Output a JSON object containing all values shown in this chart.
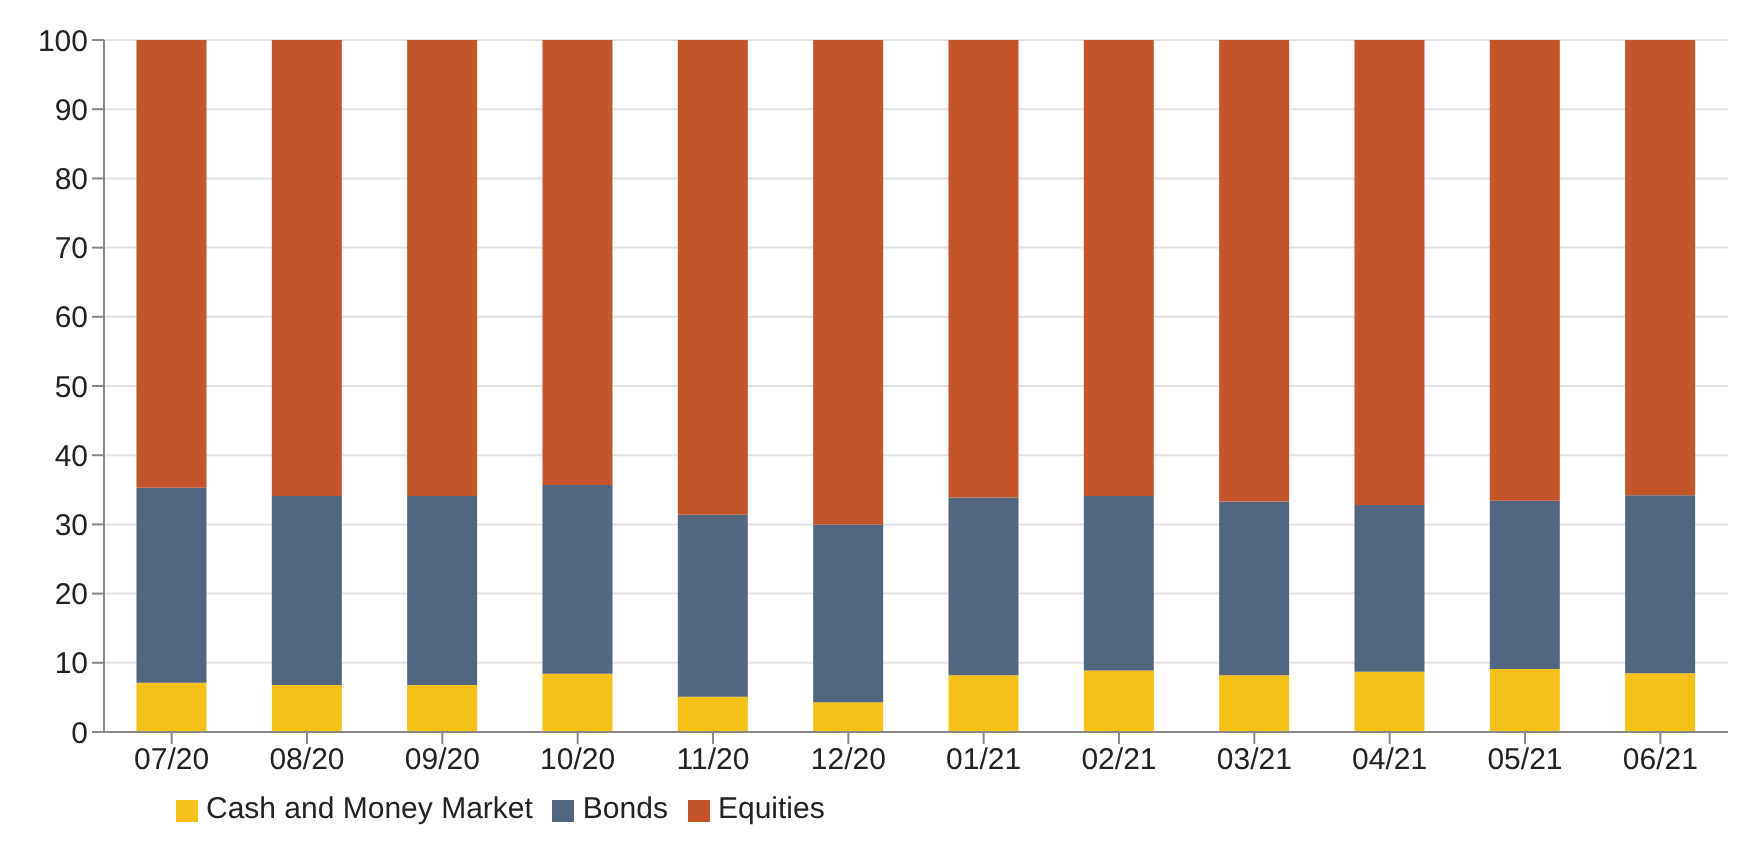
{
  "chart_data": {
    "type": "bar",
    "stacked": true,
    "categories": [
      "07/20",
      "08/20",
      "09/20",
      "10/20",
      "11/20",
      "12/20",
      "01/21",
      "02/21",
      "03/21",
      "04/21",
      "05/21",
      "06/21"
    ],
    "series": [
      {
        "name": "Cash and Money Market",
        "color": "#f5c018",
        "values": [
          7.1,
          6.8,
          6.8,
          8.4,
          5.1,
          4.3,
          8.2,
          8.9,
          8.2,
          8.7,
          9.1,
          8.5
        ]
      },
      {
        "name": "Bonds",
        "color": "#536680",
        "values": [
          28.2,
          27.3,
          27.3,
          27.3,
          26.3,
          25.7,
          25.7,
          25.2,
          25.1,
          24.1,
          24.3,
          25.7
        ]
      },
      {
        "name": "Equities",
        "color": "#c4552b",
        "values": [
          64.7,
          65.9,
          65.9,
          64.3,
          68.6,
          70.0,
          66.1,
          65.9,
          66.7,
          67.2,
          66.6,
          65.8
        ]
      }
    ],
    "ylim": [
      0,
      100
    ],
    "yticks": [
      0,
      10,
      20,
      30,
      40,
      50,
      60,
      70,
      80,
      90,
      100
    ],
    "grid": "y",
    "legend": "bottom left"
  }
}
